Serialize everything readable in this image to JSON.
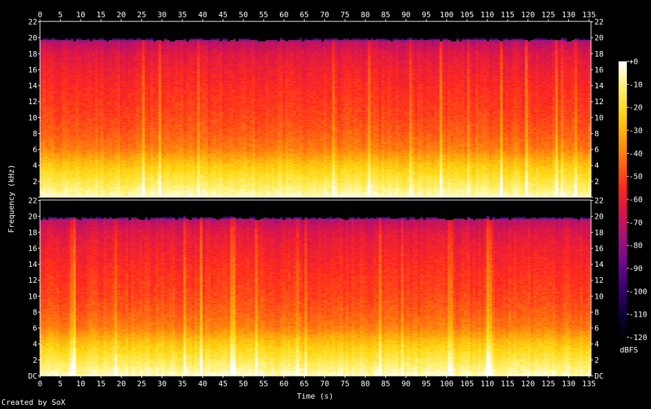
{
  "chart_data": {
    "type": "heatmap",
    "subtype": "spectrogram",
    "xlabel": "Time (s)",
    "ylabel": "Frequency (kHz)",
    "x_range": [
      0,
      135.5
    ],
    "x_ticks": [
      0,
      5,
      10,
      15,
      20,
      25,
      30,
      35,
      40,
      45,
      50,
      55,
      60,
      65,
      70,
      75,
      80,
      85,
      90,
      95,
      100,
      105,
      110,
      115,
      120,
      125,
      130,
      135
    ],
    "y_range_khz": [
      0,
      22.05
    ],
    "y_ticks": [
      0,
      2,
      4,
      6,
      8,
      10,
      12,
      14,
      16,
      18,
      20,
      22
    ],
    "y_tick_labels_bottom": [
      "DC",
      "2",
      "4",
      "6",
      "8",
      "10",
      "12",
      "14",
      "16",
      "18",
      "20",
      "22"
    ],
    "y_tick_labels_top": [
      "",
      "2",
      "4",
      "6",
      "8",
      "10",
      "12",
      "14",
      "16",
      "18",
      "20",
      "22"
    ],
    "channels": 2,
    "lowpass_cutoff_khz": 20,
    "colorbar": {
      "label": "dBFS",
      "range": [
        -120,
        0
      ],
      "ticks": [
        0,
        -10,
        -20,
        -30,
        -40,
        -50,
        -60,
        -70,
        -80,
        -90,
        -100,
        -110,
        -120
      ],
      "tick_labels": [
        "+0",
        "-10",
        "-20",
        "-30",
        "-40",
        "-50",
        "-60",
        "-70",
        "-80",
        "-90",
        "-100",
        "-110",
        "-120"
      ]
    },
    "colormap_stops": [
      "#000000",
      "#10003a",
      "#3a0070",
      "#6e0a8a",
      "#a4107a",
      "#d8154a",
      "#ff2a1e",
      "#ff6a10",
      "#ffa60a",
      "#ffd814",
      "#fff070",
      "#ffffff"
    ],
    "level_profile_db": [
      {
        "khz": 0.0,
        "db": -4
      },
      {
        "khz": 1.0,
        "db": -10
      },
      {
        "khz": 2.5,
        "db": -18
      },
      {
        "khz": 4.0,
        "db": -26
      },
      {
        "khz": 5.0,
        "db": -33
      },
      {
        "khz": 6.0,
        "db": -40
      },
      {
        "khz": 8.0,
        "db": -46
      },
      {
        "khz": 10.0,
        "db": -50
      },
      {
        "khz": 13.0,
        "db": -54
      },
      {
        "khz": 16.0,
        "db": -59
      },
      {
        "khz": 18.0,
        "db": -64
      },
      {
        "khz": 19.5,
        "db": -72
      },
      {
        "khz": 20.0,
        "db": -120
      },
      {
        "khz": 22.05,
        "db": -120
      }
    ]
  },
  "credit": "Created by SoX"
}
